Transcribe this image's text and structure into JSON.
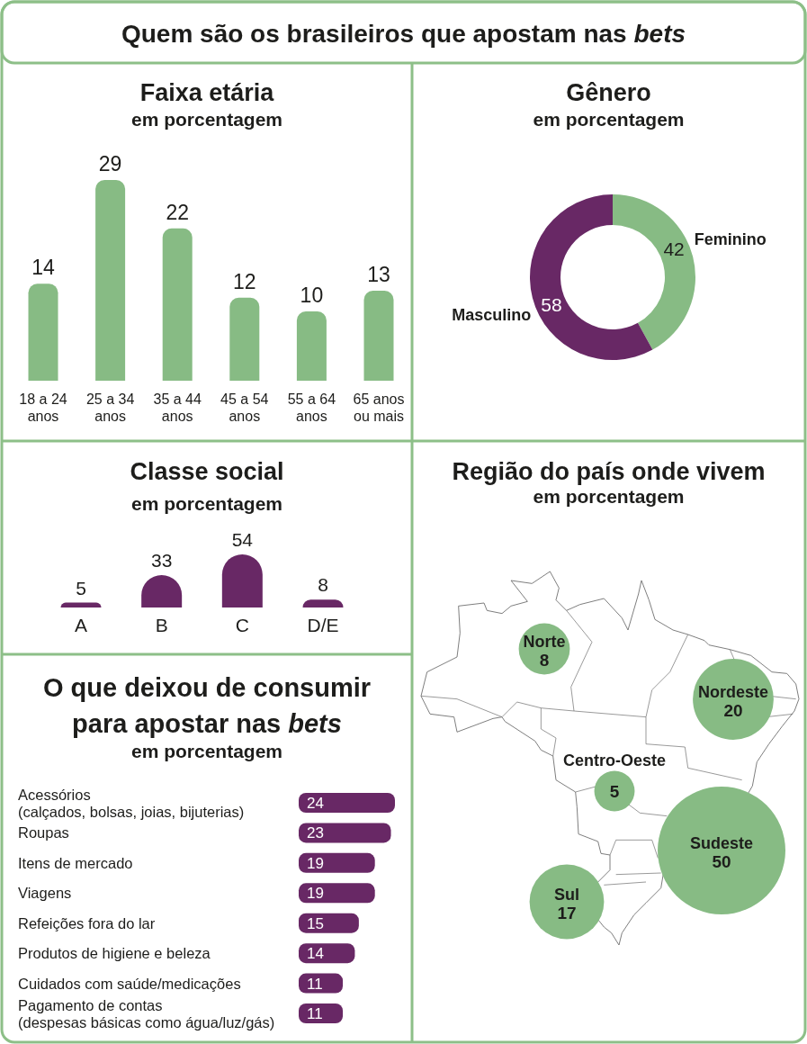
{
  "chart_data": [
    {
      "type": "other",
      "title": "Quem são os brasileiros que apostam nas bets"
    },
    {
      "type": "bar",
      "title": "Faixa etária",
      "subtitle": "em porcentagem",
      "categories": [
        "18 a 24 anos",
        "25 a 34 anos",
        "35 a 44 anos",
        "45 a 54 anos",
        "55 a 64 anos",
        "65 anos ou mais"
      ],
      "values": [
        14,
        29,
        22,
        12,
        10,
        13
      ],
      "color": "#87bb84",
      "data_labels": true
    },
    {
      "type": "donut",
      "title": "Gênero",
      "subtitle": "em porcentagem",
      "categories": [
        "Feminino",
        "Masculino"
      ],
      "values": [
        42,
        58
      ],
      "colors": [
        "#87bb84",
        "#682865"
      ],
      "data_labels": true
    },
    {
      "type": "bar",
      "title": "Classe social",
      "subtitle": "em porcentagem",
      "categories": [
        "A",
        "B",
        "C",
        "D/E"
      ],
      "values": [
        5,
        33,
        54,
        8
      ],
      "color": "#682865",
      "data_labels": true
    },
    {
      "type": "other",
      "title": "Região do país onde vivem",
      "subtitle": "em porcentagem",
      "categories": [
        "Norte",
        "Nordeste",
        "Centro-Oeste",
        "Sudeste",
        "Sul"
      ],
      "values": [
        8,
        20,
        5,
        50,
        17
      ],
      "color": "#87bb84",
      "data_labels": true
    },
    {
      "type": "bar",
      "orientation": "horizontal",
      "title": "O que deixou de consumir para apostar nas bets",
      "subtitle": "em porcentagem",
      "categories": [
        "Acessórios (calçados, bolsas, joias, bijuterias)",
        "Roupas",
        "Itens de mercado",
        "Viagens",
        "Refeições fora do lar",
        "Produtos de higiene e beleza",
        "Cuidados com saúde/medicações",
        "Pagamento de contas (despesas básicas como água/luz/gás)"
      ],
      "values": [
        24,
        23,
        19,
        19,
        15,
        14,
        11,
        11
      ],
      "color": "#682865",
      "data_labels": true
    }
  ]
}
